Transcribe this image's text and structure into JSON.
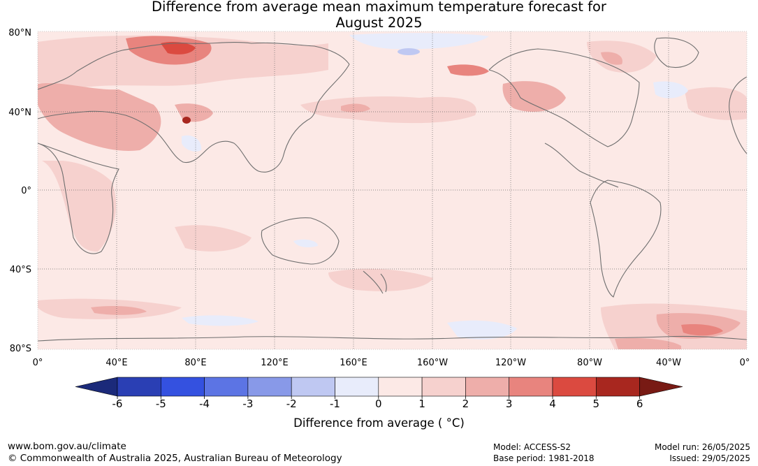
{
  "title": {
    "line1": "Difference from average mean maximum temperature forecast for",
    "line2": "August 2025"
  },
  "map": {
    "lat_labels": [
      "80°N",
      "40°N",
      "0°",
      "40°S",
      "80°S"
    ],
    "lon_labels": [
      "0°",
      "40°E",
      "80°E",
      "120°E",
      "160°E",
      "160°W",
      "120°W",
      "80°W",
      "40°W",
      "0°"
    ],
    "ocean_color": "#fce9e6",
    "land_outline_color": "#6e6e6e"
  },
  "colorbar": {
    "label": "Difference from average ( °C)",
    "ticks": [
      "-6",
      "-5",
      "-4",
      "-3",
      "-2",
      "-1",
      "0",
      "1",
      "2",
      "3",
      "4",
      "5",
      "6"
    ],
    "colors": [
      "#1b2a7a",
      "#2a3fb4",
      "#3451e0",
      "#5c74e4",
      "#8899e8",
      "#bfc8f2",
      "#e8ecfb",
      "#fce9e6",
      "#f6d1ce",
      "#eeaeaa",
      "#e8847e",
      "#db4a40",
      "#a8271f",
      "#781a14"
    ]
  },
  "footer": {
    "website": "www.bom.gov.au/climate",
    "copyright": "© Commonwealth of Australia 2025, Australian Bureau of Meteorology",
    "model": "Model: ACCESS-S2",
    "base_period": "Base period: 1981-2018",
    "model_run": "Model run: 26/05/2025",
    "issued": "Issued: 29/05/2025"
  }
}
